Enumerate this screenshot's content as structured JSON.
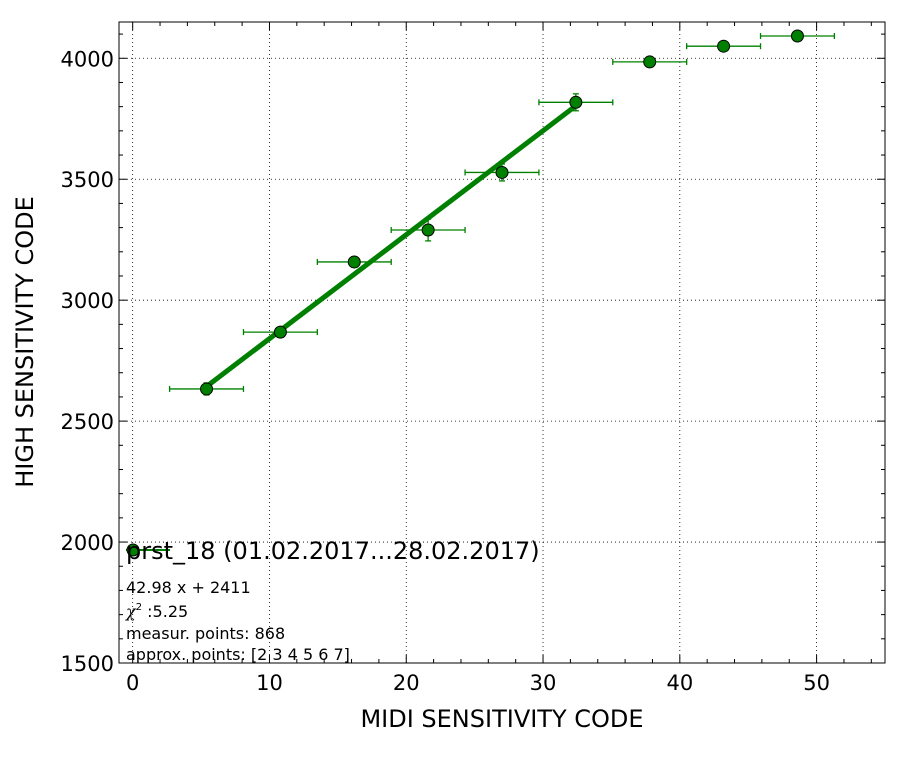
{
  "chart_data": {
    "type": "scatter",
    "xlabel": "MIDI SENSITIVITY CODE",
    "ylabel": "HIGH SENSITIVITY CODE",
    "xlim": [
      -1,
      55
    ],
    "ylim": [
      1500,
      4150
    ],
    "x_ticks": [
      0,
      10,
      20,
      30,
      40,
      50
    ],
    "y_ticks": [
      1500,
      2000,
      2500,
      3000,
      3500,
      4000
    ],
    "grid": true,
    "legend_placement": "lower-left",
    "series": [
      {
        "name": "prst_18 (01.02.2017...28.02.2017)",
        "color": "#008000",
        "marker": "circle",
        "points": [
          {
            "x": 5.4,
            "y": 2633,
            "xerr": 2.7,
            "yerr": 25
          },
          {
            "x": 10.8,
            "y": 2868,
            "xerr": 2.7,
            "yerr": 20
          },
          {
            "x": 16.2,
            "y": 3158,
            "xerr": 2.7,
            "yerr": 22
          },
          {
            "x": 21.6,
            "y": 3290,
            "xerr": 2.7,
            "yerr": 45
          },
          {
            "x": 27.0,
            "y": 3528,
            "xerr": 2.7,
            "yerr": 35
          },
          {
            "x": 32.4,
            "y": 3818,
            "xerr": 2.7,
            "yerr": 35
          },
          {
            "x": 37.8,
            "y": 3985,
            "xerr": 2.7,
            "yerr": 20
          },
          {
            "x": 43.2,
            "y": 4050,
            "xerr": 2.7,
            "yerr": 5
          },
          {
            "x": 48.6,
            "y": 4092,
            "xerr": 2.7,
            "yerr": 5
          }
        ]
      }
    ],
    "fit": {
      "slope": 42.98,
      "intercept": 2411,
      "x_range": [
        5.4,
        32.4
      ],
      "color": "#008000"
    },
    "annotations": {
      "equation": "42.98 x + 2411",
      "chi2_symbol": "χ",
      "chi2_sup": "2",
      "chi2_value": " :5.25",
      "measured": "measur. points: 868",
      "approx": "approx. points: [2 3 4 5 6 7]"
    }
  }
}
